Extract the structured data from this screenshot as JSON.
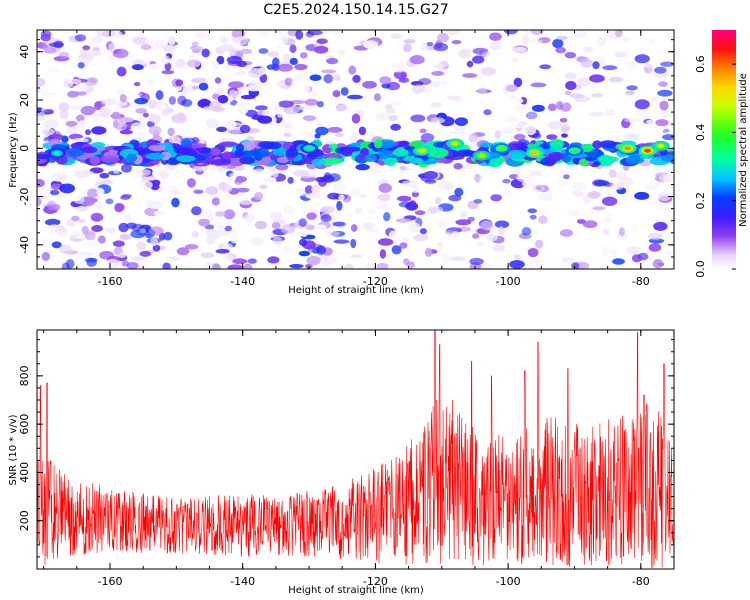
{
  "title": "C2E5.2024.150.14.15.G27",
  "colors": {
    "trace": "#ff0000",
    "axis": "#000000"
  },
  "chart_data": [
    {
      "type": "heatmap",
      "xlabel": "Height of straight line (km)",
      "ylabel": "Frequency (Hz)",
      "xlim": [
        -171,
        -75
      ],
      "ylim": [
        -50,
        49
      ],
      "xticks": [
        -160,
        -140,
        -120,
        -100,
        -80
      ],
      "xtick_labels": [
        "-160",
        "-140",
        "-120",
        "-100",
        "-80"
      ],
      "yticks": [
        -40,
        -20,
        0,
        20,
        40
      ],
      "ytick_labels": [
        "-40",
        "-20",
        "0",
        "20",
        "40"
      ],
      "band_center_hz": 0,
      "band_halfwidth_hz": 4,
      "hotspots": [
        {
          "x": -113,
          "y": -1,
          "amp": 0.52
        },
        {
          "x": -108,
          "y": 2,
          "amp": 0.5
        },
        {
          "x": -104,
          "y": -3,
          "amp": 0.48
        },
        {
          "x": -101,
          "y": 0,
          "amp": 0.42
        },
        {
          "x": -96,
          "y": -2,
          "amp": 0.55
        },
        {
          "x": -90,
          "y": -1,
          "amp": 0.4
        },
        {
          "x": -82,
          "y": 0,
          "amp": 0.58
        },
        {
          "x": -79,
          "y": -1,
          "amp": 0.62
        },
        {
          "x": -77,
          "y": 1,
          "amp": 0.5
        },
        {
          "x": -130,
          "y": 0,
          "amp": 0.35
        },
        {
          "x": -168,
          "y": -2,
          "amp": 0.32
        }
      ],
      "colorbar": {
        "label": "Normalized spectral amplitude",
        "range": [
          0,
          0.7
        ],
        "ticks": [
          0,
          0.2,
          0.4,
          0.6
        ],
        "tick_labels": [
          "0.0",
          "0.2",
          "0.4",
          "0.6"
        ]
      }
    },
    {
      "type": "line",
      "xlabel": "Height of straight line (km)",
      "ylabel": "SNR (10 * v/v)",
      "xlim": [
        -171,
        -75
      ],
      "ylim": [
        0,
        990
      ],
      "xticks": [
        -160,
        -140,
        -120,
        -100,
        -80
      ],
      "xtick_labels": [
        "-160",
        "-140",
        "-120",
        "-100",
        "-80"
      ],
      "yticks": [
        200,
        400,
        600,
        800
      ],
      "ytick_labels": [
        "200",
        "400",
        "600",
        "800"
      ],
      "envelope": [
        {
          "x": -171,
          "base": 260,
          "amp": 260
        },
        {
          "x": -168,
          "base": 230,
          "amp": 200
        },
        {
          "x": -160,
          "base": 200,
          "amp": 130
        },
        {
          "x": -150,
          "base": 180,
          "amp": 120
        },
        {
          "x": -140,
          "base": 180,
          "amp": 130
        },
        {
          "x": -130,
          "base": 190,
          "amp": 140
        },
        {
          "x": -122,
          "base": 210,
          "amp": 180
        },
        {
          "x": -116,
          "base": 250,
          "amp": 240
        },
        {
          "x": -112,
          "base": 320,
          "amp": 300
        },
        {
          "x": -110,
          "base": 380,
          "amp": 400
        },
        {
          "x": -106,
          "base": 300,
          "amp": 300
        },
        {
          "x": -100,
          "base": 290,
          "amp": 260
        },
        {
          "x": -94,
          "base": 320,
          "amp": 320
        },
        {
          "x": -88,
          "base": 300,
          "amp": 290
        },
        {
          "x": -82,
          "base": 330,
          "amp": 320
        },
        {
          "x": -79,
          "base": 330,
          "amp": 360
        },
        {
          "x": -75,
          "base": 310,
          "amp": 320
        }
      ],
      "spikes": [
        {
          "x": -170.5,
          "y": 760
        },
        {
          "x": -169.5,
          "y": 770
        },
        {
          "x": -111,
          "y": 990
        },
        {
          "x": -110.3,
          "y": 930
        },
        {
          "x": -105.5,
          "y": 860
        },
        {
          "x": -102.5,
          "y": 800
        },
        {
          "x": -97.5,
          "y": 820
        },
        {
          "x": -95.5,
          "y": 940
        },
        {
          "x": -91,
          "y": 830
        },
        {
          "x": -80.5,
          "y": 980
        },
        {
          "x": -79.5,
          "y": 720
        },
        {
          "x": -76.5,
          "y": 850
        }
      ]
    }
  ]
}
